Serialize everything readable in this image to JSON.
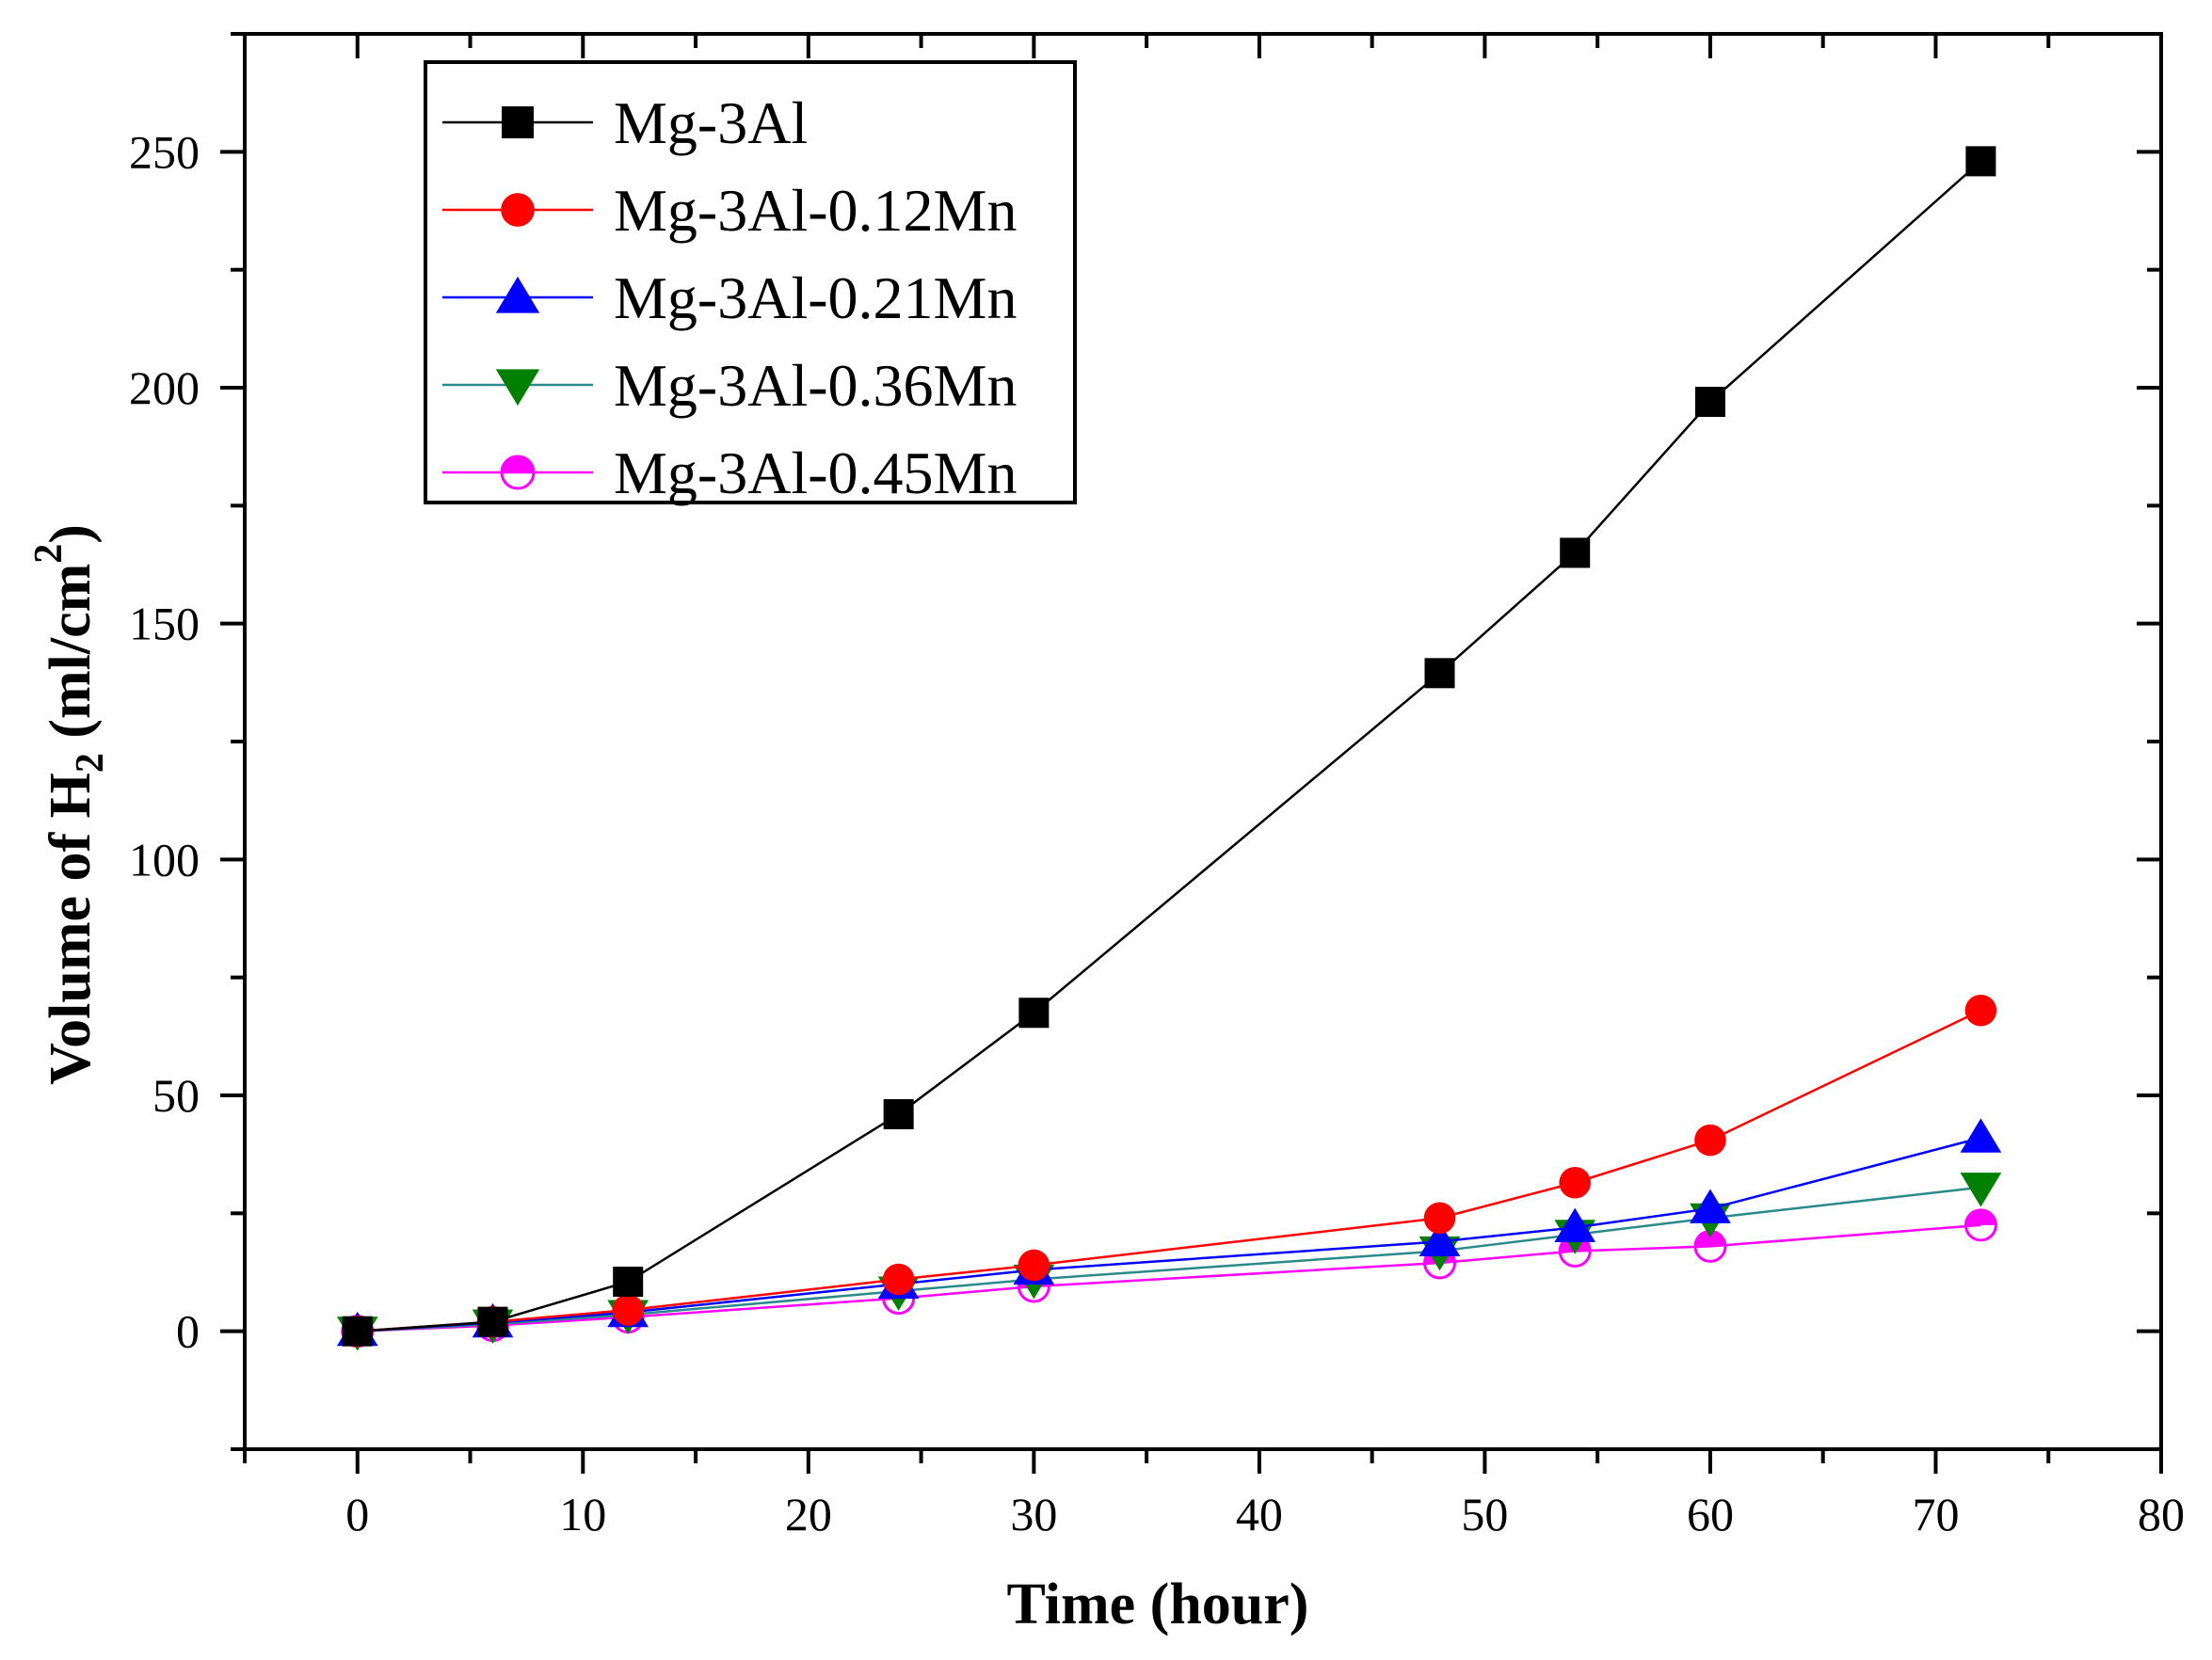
{
  "chart_data": {
    "type": "line",
    "title": "",
    "xlabel": "Time (hour)",
    "ylabel": {
      "main": "Volume of H",
      "subscript": "2",
      "unit_open": " (ml/cm",
      "superscript": "2",
      "unit_close": ")"
    },
    "xlim": [
      -5,
      80
    ],
    "ylim": [
      -25,
      275
    ],
    "x_ticks": [
      0,
      10,
      20,
      30,
      40,
      50,
      60,
      70,
      80
    ],
    "y_ticks": [
      0,
      50,
      100,
      150,
      200,
      250
    ],
    "x_tick_labels": [
      "0",
      "10",
      "20",
      "30",
      "40",
      "50",
      "60",
      "70",
      "80"
    ],
    "y_tick_labels": [
      "0",
      "50",
      "100",
      "150",
      "200",
      "250"
    ],
    "grid": false,
    "legend_position": "top-left",
    "x": [
      0,
      6,
      12,
      24,
      30,
      48,
      54,
      60,
      72
    ],
    "series": [
      {
        "name": "Mg-3Al",
        "values": [
          0,
          2,
          10.5,
          46,
          67.5,
          139.5,
          165,
          197,
          248
        ],
        "color": "#000000",
        "marker": "square"
      },
      {
        "name": "Mg-3Al-0.12Mn",
        "values": [
          0,
          2,
          4.5,
          11,
          14,
          24,
          31.5,
          40.5,
          68
        ],
        "color": "#ff0000",
        "marker": "circle"
      },
      {
        "name": "Mg-3Al-0.21Mn",
        "values": [
          0,
          1.8,
          4,
          10,
          13,
          19,
          22,
          26,
          41
        ],
        "color": "#0000ff",
        "marker": "triangle-up"
      },
      {
        "name": "Mg-3Al-0.36Mn",
        "values": [
          0,
          1.5,
          3.5,
          8.5,
          11,
          17,
          20.5,
          24,
          30.5
        ],
        "color": "#008000",
        "line_color": "#2a8a8a",
        "marker": "triangle-down"
      },
      {
        "name": "Mg-3Al-0.45Mn",
        "values": [
          0,
          1.2,
          3,
          7,
          9.5,
          14.5,
          17,
          18,
          22.5
        ],
        "color": "#ff00ff",
        "marker": "half-circle"
      }
    ]
  }
}
